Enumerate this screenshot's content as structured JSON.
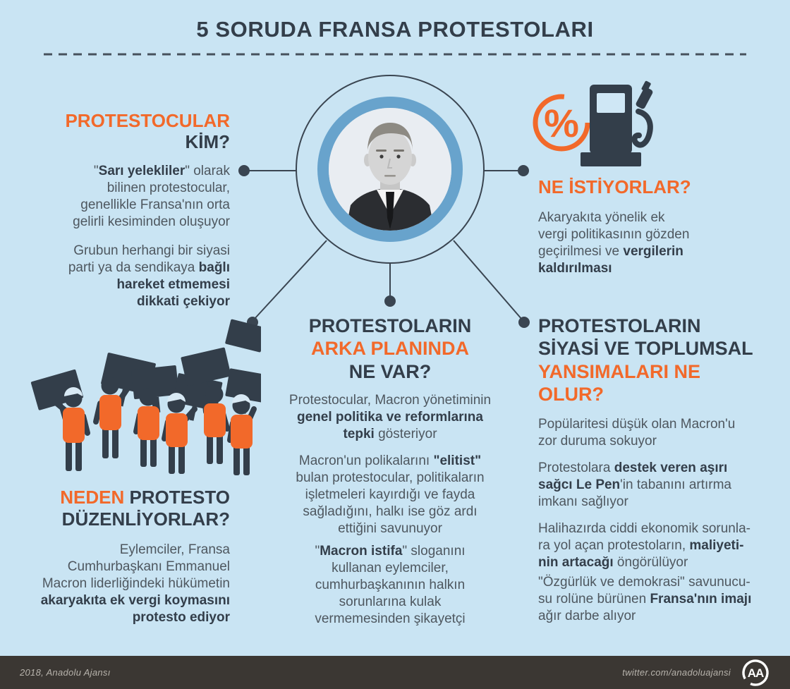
{
  "title": "5 SORUDA FRANSA PROTESTOLARI",
  "colors": {
    "background": "#c9e4f3",
    "accent_orange": "#f2692a",
    "dark_navy": "#333e4a",
    "body_text": "#4e575f",
    "portrait_ring_blue": "#68a3cc",
    "footer_bar": "#3b3733"
  },
  "icons": {
    "percent_symbol": "%",
    "percent": "percent-icon",
    "fuel_pump": "fuel-pump-icon",
    "protesters": "protesters-illustration",
    "portrait": "macron-portrait",
    "aa_logo": "aa-logo-icon"
  },
  "sections": {
    "who": {
      "heading": [
        {
          "t": "PROTESTOCULAR\n",
          "c": 1
        },
        {
          "t": "KİM?"
        }
      ],
      "paragraphs": [
        [
          {
            "t": "\""
          },
          {
            "t": "Sarı yelekliler",
            "b": 1
          },
          {
            "t": "\" olarak\nbilinen protestocular,\ngenellikle Fransa'nın orta\ngelirli kesiminden oluşuyor"
          }
        ],
        [
          {
            "t": "Grubun herhangi bir siyasi\nparti ya da sendikaya "
          },
          {
            "t": "bağlı\nhareket etmemesi\ndikkati çekiyor",
            "b": 1
          }
        ]
      ]
    },
    "want": {
      "heading": [
        {
          "t": "NE İSTİYORLAR?",
          "c": 1
        }
      ],
      "paragraphs": [
        [
          {
            "t": "Akaryakıta yönelik ek\nvergi politikasının gözden\ngeçirilmesi ve "
          },
          {
            "t": "vergilerin\nkaldırılması",
            "b": 1
          }
        ]
      ]
    },
    "background": {
      "heading": [
        {
          "t": "PROTESTOLARIN\n"
        },
        {
          "t": "ARKA PLANINDA\n",
          "c": 1
        },
        {
          "t": "NE VAR?"
        }
      ],
      "paragraphs": [
        [
          {
            "t": "Protestocular, Macron yönetiminin\n"
          },
          {
            "t": "genel politika ve reformlarına\ntepki",
            "b": 1
          },
          {
            "t": " gösteriyor"
          }
        ],
        [
          {
            "t": "Macron'un polikalarını "
          },
          {
            "t": "\"elitist\"",
            "b": 1
          },
          {
            "t": "\nbulan protestocular,  politikaların\nişletmeleri kayırdığı ve fayda\nsağladığını, halkı ise göz ardı\nettiğini savunuyor"
          }
        ],
        [
          {
            "t": "\""
          },
          {
            "t": "Macron istifa",
            "b": 1
          },
          {
            "t": "\" sloganını\nkullanan eylemciler,\ncumhurbaşkanının halkın\nsorunlarına kulak\nvermemesinden şikayetçi"
          }
        ]
      ]
    },
    "impact": {
      "heading": [
        {
          "t": "PROTESTOLARIN\nSİYASİ VE TOPLUMSAL\n"
        },
        {
          "t": "YANSIMALARI NE\nOLUR?",
          "c": 1
        }
      ],
      "paragraphs": [
        [
          {
            "t": "Popülaritesi düşük olan Macron'u\nzor duruma sokuyor"
          }
        ],
        [
          {
            "t": "Protestolara "
          },
          {
            "t": "destek veren aşırı\nsağcı Le Pen",
            "b": 1
          },
          {
            "t": "'in tabanını artırma\nimkanı sağlıyor"
          }
        ],
        [
          {
            "t": "Halihazırda ciddi ekonomik sorunla-\nra yol açan protestoların, "
          },
          {
            "t": "maliyeti-\nnin artacağı",
            "b": 1
          },
          {
            "t": " öngörülüyor"
          }
        ],
        [
          {
            "t": "\"Özgürlük ve demokrasi\" savunucu-\nsu rolüne bürünen "
          },
          {
            "t": "Fransa'nın imajı",
            "b": 1
          },
          {
            "t": "\nağır darbe alıyor"
          }
        ]
      ]
    },
    "why": {
      "heading": [
        {
          "t": "NEDEN",
          "c": 1
        },
        {
          "t": " PROTESTO\nDÜZENLİYORLAR?"
        }
      ],
      "paragraphs": [
        [
          {
            "t": "Eylemciler, Fransa\nCumhurbaşkanı Emmanuel\nMacron liderliğindeki hükümetin\n"
          },
          {
            "t": "akaryakıta ek vergi koymasını\nprotesto ediyor",
            "b": 1
          }
        ]
      ]
    }
  },
  "footer": {
    "credit": "2018, Anadolu Ajansı",
    "twitter": "twitter.com/anadoluajansi",
    "logo_text": "AA"
  }
}
